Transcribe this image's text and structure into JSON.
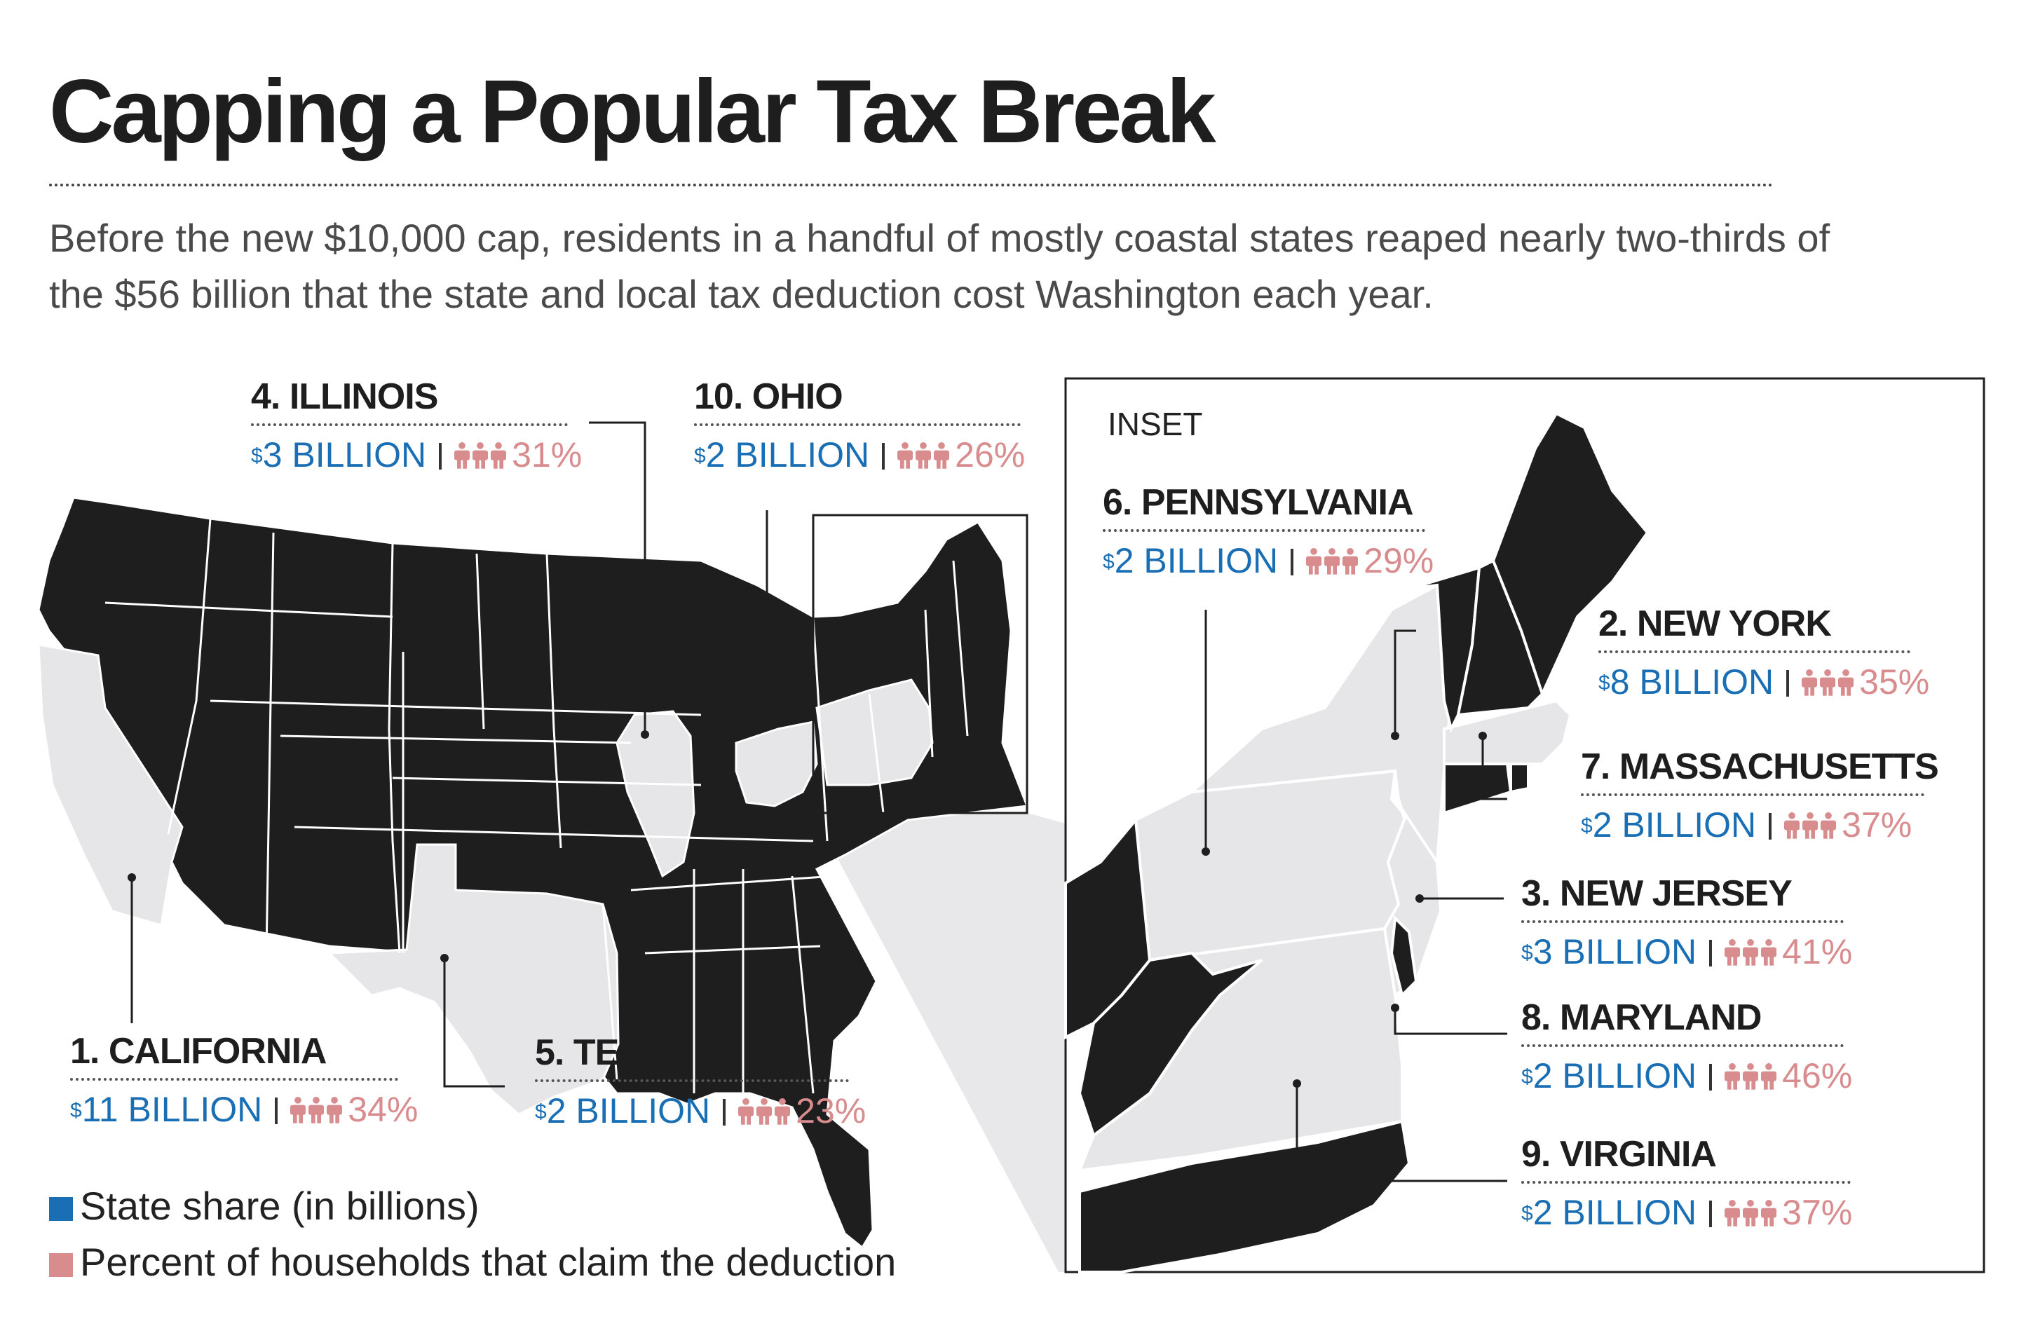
{
  "title": "Capping a Popular Tax Break",
  "subtitle": "Before the new $10,000 cap, residents in a handful of mostly coastal states reaped nearly two-thirds of the $56 billion that the state and local tax deduction cost Washington each year.",
  "inset_label": "INSET",
  "colors": {
    "state_fill": "#1e1e1e",
    "highlight_fill": "#e6e6e8",
    "amount_blue": "#1a6fb4",
    "percent_pink": "#d98c8e"
  },
  "icons": {
    "households": "people-icon"
  },
  "callouts": [
    {
      "rank": "1.",
      "state": "CALIFORNIA",
      "currency": "$",
      "amount": "11 BILLION",
      "percent": "34%"
    },
    {
      "rank": "2.",
      "state": "NEW YORK",
      "currency": "$",
      "amount": "8 BILLION",
      "percent": "35%"
    },
    {
      "rank": "3.",
      "state": "NEW JERSEY",
      "currency": "$",
      "amount": "3 BILLION",
      "percent": "41%"
    },
    {
      "rank": "4.",
      "state": "ILLINOIS",
      "currency": "$",
      "amount": "3 BILLION",
      "percent": "31%"
    },
    {
      "rank": "5.",
      "state": "TEXAS",
      "currency": "$",
      "amount": "2 BILLION",
      "percent": "23%"
    },
    {
      "rank": "6.",
      "state": "PENNSYLVANIA",
      "currency": "$",
      "amount": "2 BILLION",
      "percent": "29%"
    },
    {
      "rank": "7.",
      "state": "MASSACHUSETTS",
      "currency": "$",
      "amount": "2 BILLION",
      "percent": "37%"
    },
    {
      "rank": "8.",
      "state": "MARYLAND",
      "currency": "$",
      "amount": "2 BILLION",
      "percent": "46%"
    },
    {
      "rank": "9.",
      "state": "VIRGINIA",
      "currency": "$",
      "amount": "2 BILLION",
      "percent": "37%"
    },
    {
      "rank": "10.",
      "state": "OHIO",
      "currency": "$",
      "amount": "2 BILLION",
      "percent": "26%"
    }
  ],
  "legend": {
    "amount_label": "State share (in billions)",
    "percent_label": "Percent of households that claim the deduction"
  }
}
